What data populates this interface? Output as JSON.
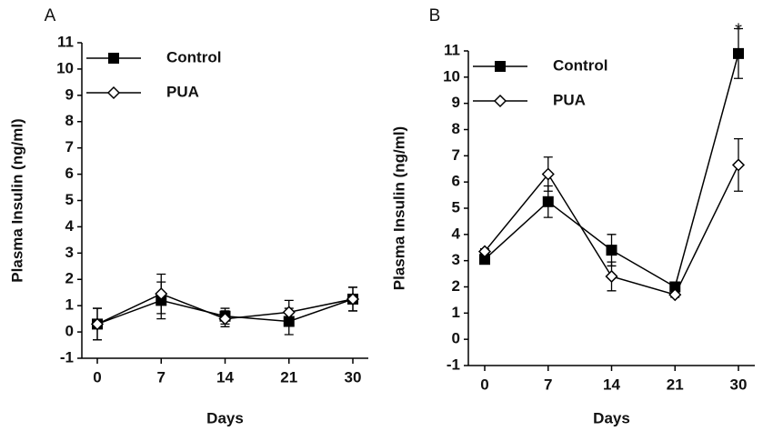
{
  "chart_data": [
    {
      "type": "line",
      "panel_label": "A",
      "x_label": "Days",
      "y_label": "Plasma Insulin (ng/ml)",
      "categories": [
        "0",
        "7",
        "14",
        "21",
        "30"
      ],
      "series": [
        {
          "name": "Control",
          "color": "#000000",
          "marker": "square",
          "values": [
            0.3,
            1.2,
            0.6,
            0.4,
            1.25
          ],
          "errors": [
            0.6,
            0.7,
            0.3,
            0.5,
            0.45
          ]
        },
        {
          "name": "PUA",
          "color": "#000000",
          "marker": "diamond",
          "values": [
            0.3,
            1.45,
            0.5,
            0.75,
            1.25
          ],
          "errors": [
            0.6,
            0.75,
            0.3,
            0.45,
            0.45
          ]
        }
      ],
      "ylim": [
        -1,
        11
      ],
      "yticks": [
        -1,
        0,
        1,
        2,
        3,
        4,
        5,
        6,
        7,
        8,
        9,
        10,
        11
      ],
      "legend": "upper left"
    },
    {
      "type": "line",
      "panel_label": "B",
      "x_label": "Days",
      "y_label": "Plasma Insulin (ng/ml)",
      "categories": [
        "0",
        "7",
        "14",
        "21",
        "30"
      ],
      "series": [
        {
          "name": "Control",
          "color": "#000000",
          "marker": "square",
          "values": [
            3.05,
            5.25,
            3.4,
            2.0,
            10.9
          ],
          "errors": [
            0.1,
            0.6,
            0.6,
            0.1,
            0.95
          ]
        },
        {
          "name": "PUA",
          "color": "#000000",
          "marker": "diamond",
          "values": [
            3.35,
            6.3,
            2.4,
            1.7,
            6.65
          ],
          "errors": [
            0.1,
            0.65,
            0.55,
            0.1,
            1.0
          ]
        }
      ],
      "annotation": "*",
      "ylim": [
        -1,
        11
      ],
      "yticks": [
        -1,
        0,
        1,
        2,
        3,
        4,
        5,
        6,
        7,
        8,
        9,
        10,
        11
      ],
      "legend": "upper left"
    }
  ]
}
